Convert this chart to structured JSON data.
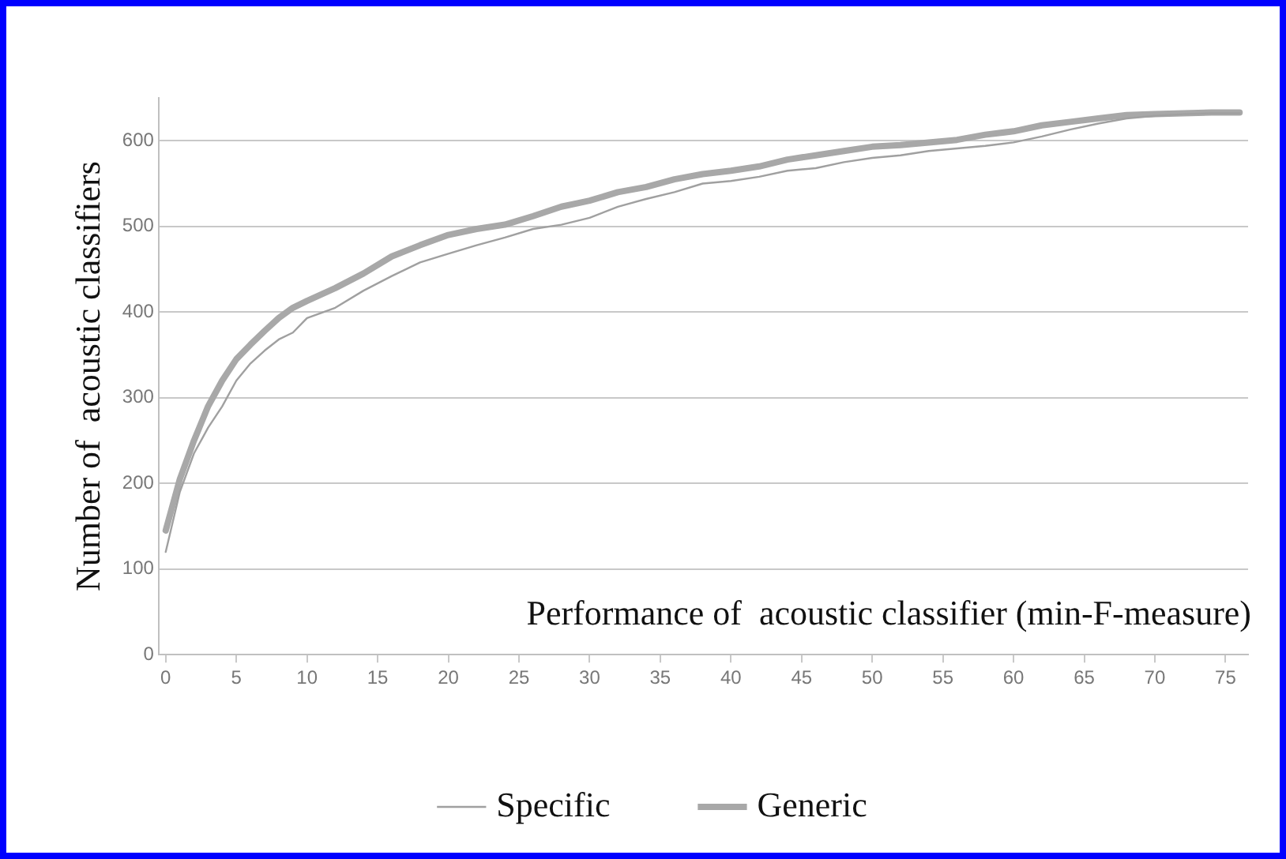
{
  "chart_data": {
    "type": "line",
    "xlabel": "Performance of  acoustic classifier (min-F-measure)",
    "ylabel": "Number of  acoustic classifiers",
    "x": [
      0,
      1,
      2,
      3,
      4,
      5,
      6,
      7,
      8,
      9,
      10,
      12,
      14,
      16,
      18,
      20,
      22,
      24,
      26,
      28,
      30,
      32,
      34,
      36,
      38,
      40,
      42,
      44,
      46,
      48,
      50,
      52,
      54,
      56,
      58,
      60,
      62,
      64,
      66,
      68,
      70,
      72,
      74,
      76
    ],
    "series": [
      {
        "name": "Specific",
        "color": "#a0a0a0",
        "values": [
          120,
          190,
          235,
          265,
          290,
          320,
          340,
          355,
          368,
          376,
          393,
          405,
          425,
          442,
          458,
          468,
          478,
          487,
          497,
          502,
          510,
          523,
          532,
          540,
          550,
          553,
          558,
          565,
          568,
          575,
          580,
          583,
          588,
          591,
          594,
          598,
          605,
          613,
          620,
          626,
          629,
          631,
          632,
          632
        ]
      },
      {
        "name": "Generic",
        "color": "#a8a8a8",
        "values": [
          145,
          205,
          250,
          290,
          320,
          345,
          362,
          378,
          393,
          405,
          413,
          428,
          445,
          465,
          478,
          490,
          497,
          502,
          512,
          523,
          530,
          540,
          546,
          555,
          561,
          565,
          570,
          578,
          583,
          588,
          593,
          595,
          598,
          601,
          607,
          611,
          618,
          622,
          626,
          630,
          631,
          632,
          633,
          633
        ]
      }
    ],
    "xlim": [
      -0.5,
      76.6
    ],
    "xticks": [
      0,
      5,
      10,
      15,
      20,
      25,
      30,
      35,
      40,
      45,
      50,
      55,
      60,
      65,
      70,
      75
    ],
    "ylim": [
      0,
      650
    ],
    "yticks": [
      0,
      100,
      200,
      300,
      400,
      500,
      600
    ],
    "grid": "y",
    "legend": "bottom",
    "marker": "none",
    "line_style": "solid"
  }
}
